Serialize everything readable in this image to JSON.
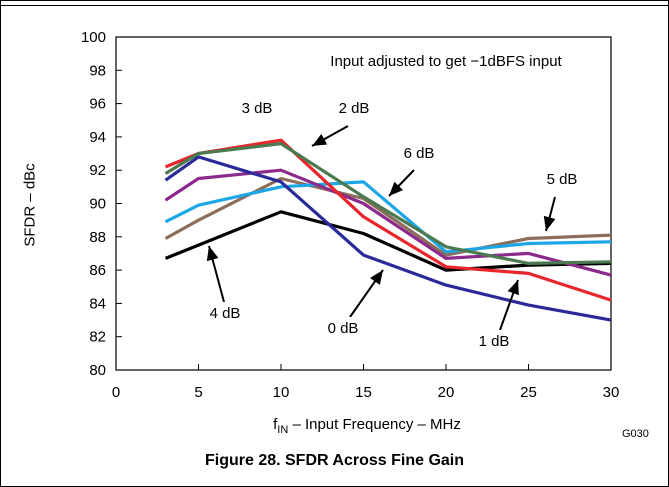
{
  "chart_data": {
    "type": "line",
    "caption": "Figure 28. SFDR Across Fine Gain",
    "figure_code": "G030",
    "xlabel": {
      "pre": "f",
      "sub": "IN",
      "post": " – Input Frequency – MHz"
    },
    "ylabel": "SFDR – dBc",
    "xlim": [
      0,
      30
    ],
    "ylim": [
      80,
      100
    ],
    "x_ticks": [
      "0",
      "5",
      "10",
      "15",
      "20",
      "25",
      "30"
    ],
    "y_ticks": [
      "80",
      "82",
      "84",
      "86",
      "88",
      "90",
      "92",
      "94",
      "96",
      "98",
      "100"
    ],
    "grid": false,
    "note": "Input adjusted to get −1dBFS input",
    "series": [
      {
        "name": "4 dB",
        "color": "#000000",
        "x": [
          3,
          5,
          10,
          15,
          20,
          25,
          30
        ],
        "y": [
          86.7,
          87.5,
          89.5,
          88.2,
          86.0,
          86.3,
          86.4
        ]
      },
      {
        "name": "5 dB",
        "color": "#8a6e5a",
        "x": [
          3,
          5,
          10,
          15,
          20,
          25,
          30
        ],
        "y": [
          87.9,
          89.0,
          91.5,
          90.3,
          86.9,
          87.9,
          88.1
        ]
      },
      {
        "name": "6 dB",
        "color": "#1ca6e8",
        "x": [
          3,
          5,
          10,
          15,
          20,
          25,
          30
        ],
        "y": [
          88.9,
          89.9,
          91.0,
          91.3,
          87.1,
          87.6,
          87.7
        ]
      },
      {
        "name": "purple",
        "color": "#8c2a8c",
        "x": [
          3,
          5,
          10,
          15,
          20,
          25,
          30
        ],
        "y": [
          90.2,
          91.5,
          92.0,
          90.0,
          86.7,
          87.0,
          85.7
        ]
      },
      {
        "name": "0 dB",
        "color": "#2a2a9a",
        "x": [
          3,
          5,
          10,
          15,
          20,
          25,
          30
        ],
        "y": [
          91.4,
          92.8,
          91.3,
          86.9,
          85.1,
          83.9,
          83.0
        ]
      },
      {
        "name": "1 dB",
        "color": "#e8262b",
        "x": [
          3,
          5,
          10,
          15,
          20,
          25,
          30
        ],
        "y": [
          92.2,
          93.0,
          93.8,
          89.2,
          86.2,
          85.8,
          84.2
        ]
      },
      {
        "name": "2 dB",
        "color": "#4b7a50",
        "x": [
          3,
          5,
          10,
          15,
          20,
          25,
          30
        ],
        "y": [
          91.8,
          93.0,
          93.6,
          90.4,
          87.4,
          86.4,
          86.5
        ]
      }
    ],
    "annotations": [
      {
        "text": "3 dB"
      },
      {
        "text": "2 dB"
      },
      {
        "text": "6 dB"
      },
      {
        "text": "5 dB"
      },
      {
        "text": "4 dB"
      },
      {
        "text": "0 dB"
      },
      {
        "text": "1 dB"
      }
    ]
  }
}
